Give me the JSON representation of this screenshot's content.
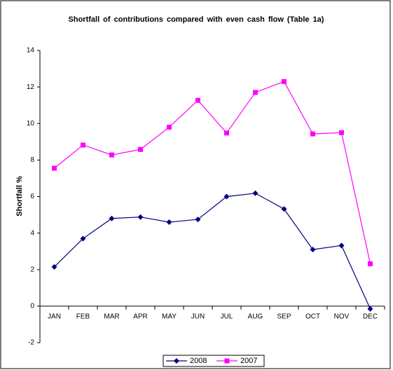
{
  "chart_data": {
    "type": "line",
    "title": "Shortfall of contributions compared with even cash flow (Table 1a)",
    "y_label": "Shortfall %",
    "categories": [
      "JAN",
      "FEB",
      "MAR",
      "APR",
      "MAY",
      "JUN",
      "JUL",
      "AUG",
      "SEP",
      "OCT",
      "NOV",
      "DEC"
    ],
    "series": [
      {
        "name": "2008",
        "color": "#000080",
        "marker": "diamond",
        "values": [
          2.15,
          3.7,
          4.8,
          4.88,
          4.6,
          4.75,
          6.0,
          6.18,
          5.32,
          3.1,
          3.32,
          -0.15
        ]
      },
      {
        "name": "2007",
        "color": "#ff00ff",
        "marker": "square",
        "values": [
          7.55,
          8.82,
          8.28,
          8.58,
          9.8,
          11.27,
          9.48,
          11.7,
          12.3,
          9.43,
          9.5,
          2.32
        ]
      }
    ],
    "ylim": [
      -2,
      14
    ],
    "yticks": [
      -2,
      0,
      2,
      4,
      6,
      8,
      10,
      12,
      14
    ],
    "grid": false,
    "legend": "bottom"
  }
}
